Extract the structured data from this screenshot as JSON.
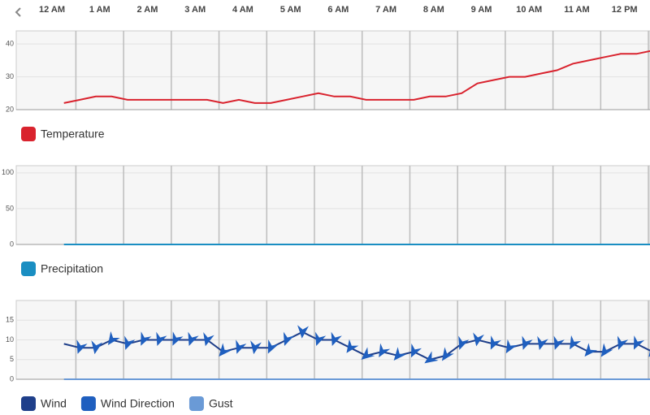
{
  "chart_data": [
    {
      "type": "line",
      "x": [
        15,
        35,
        55,
        75,
        95,
        115,
        135,
        155,
        175,
        195,
        215,
        235,
        255,
        275,
        295,
        315,
        335,
        355,
        375,
        395,
        415,
        435,
        455,
        475,
        495,
        515,
        535,
        555,
        575,
        595,
        615,
        635,
        655,
        675,
        695,
        715,
        735,
        755
      ],
      "xlim": [
        -45,
        752
      ],
      "xticks": [
        {
          "value": 0,
          "label": "12 AM"
        },
        {
          "value": 60,
          "label": "1 AM"
        },
        {
          "value": 120,
          "label": "2 AM"
        },
        {
          "value": 180,
          "label": "3 AM"
        },
        {
          "value": 240,
          "label": "4 AM"
        },
        {
          "value": 300,
          "label": "5 AM"
        },
        {
          "value": 360,
          "label": "6 AM"
        },
        {
          "value": 420,
          "label": "7 AM"
        },
        {
          "value": 480,
          "label": "8 AM"
        },
        {
          "value": 540,
          "label": "9 AM"
        },
        {
          "value": 600,
          "label": "10 AM"
        },
        {
          "value": 660,
          "label": "11 AM"
        },
        {
          "value": 720,
          "label": "12 PM"
        }
      ],
      "xgrid": [
        30,
        90,
        150,
        210,
        270,
        330,
        390,
        450,
        510,
        570,
        630,
        690,
        750
      ],
      "ylim": [
        20,
        44
      ],
      "yticks": [
        20,
        30,
        40
      ],
      "series": [
        {
          "name": "Temperature",
          "color": "#d9232e",
          "values": [
            22,
            23,
            24,
            24,
            23,
            23,
            23,
            23,
            23,
            23,
            22,
            23,
            22,
            22,
            23,
            24,
            25,
            24,
            24,
            23,
            23,
            23,
            23,
            24,
            24,
            25,
            28,
            29,
            30,
            30,
            31,
            32,
            34,
            35,
            36,
            37,
            37,
            38
          ]
        }
      ]
    },
    {
      "type": "line",
      "ylim": [
        0,
        110
      ],
      "yticks": [
        0,
        50,
        100
      ],
      "series": [
        {
          "name": "Precipitation",
          "color": "#1a8ec2",
          "values": [
            0,
            0,
            0,
            0,
            0,
            0,
            0,
            0,
            0,
            0,
            0,
            0,
            0,
            0,
            0,
            0,
            0,
            0,
            0,
            0,
            0,
            0,
            0,
            0,
            0,
            0,
            0,
            0,
            0,
            0,
            0,
            0,
            0,
            0,
            0,
            0,
            0,
            0
          ]
        }
      ]
    },
    {
      "type": "wind",
      "ylim": [
        0,
        20
      ],
      "yticks": [
        0,
        5,
        10,
        15
      ],
      "series": [
        {
          "name": "Wind",
          "color": "#1f3f8a",
          "values": [
            9,
            8,
            8,
            10,
            9,
            10,
            10,
            10,
            10,
            10,
            7,
            8,
            8,
            8,
            10,
            12,
            10,
            10,
            8,
            6,
            7,
            6,
            7,
            5,
            6,
            9,
            10,
            9,
            8,
            9,
            9,
            9,
            9,
            7,
            7,
            9,
            9,
            7
          ]
        },
        {
          "name": "Wind Direction",
          "color": "#1f5fbf",
          "values": [
            null,
            200,
            190,
            215,
            200,
            205,
            200,
            205,
            200,
            195,
            220,
            200,
            190,
            205,
            200,
            185,
            200,
            200,
            215,
            230,
            210,
            220,
            205,
            235,
            215,
            200,
            190,
            205,
            210,
            200,
            195,
            200,
            210,
            220,
            215,
            200,
            205,
            215
          ]
        },
        {
          "name": "Gust",
          "color": "#6a9ad6",
          "values": [
            0,
            0,
            0,
            0,
            0,
            0,
            0,
            0,
            0,
            0,
            0,
            0,
            0,
            0,
            0,
            0,
            0,
            0,
            0,
            0,
            0,
            0,
            0,
            0,
            0,
            0,
            0,
            0,
            0,
            0,
            0,
            0,
            0,
            0,
            0,
            0,
            0,
            0
          ]
        }
      ]
    }
  ]
}
